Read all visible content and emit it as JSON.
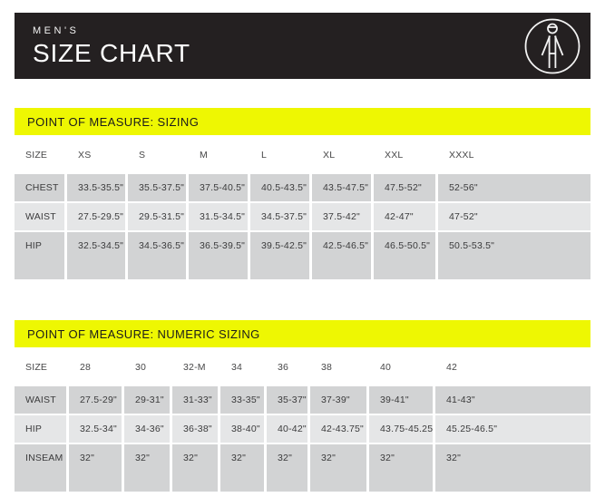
{
  "header": {
    "eyebrow": "MEN'S",
    "title": "SIZE CHART",
    "icon": "person-figure-icon"
  },
  "colors": {
    "band_bg": "#242021",
    "accent_yellow": "#eef702",
    "row_dark": "#d2d3d4",
    "row_light": "#e5e6e7",
    "text": "#3b3b3c"
  },
  "sections": [
    {
      "title": "POINT OF MEASURE: SIZING",
      "columns": [
        "SIZE",
        "XS",
        "S",
        "M",
        "L",
        "XL",
        "XXL",
        "XXXL"
      ],
      "rows": [
        {
          "label": "CHEST",
          "values": [
            "33.5-35.5\"",
            "35.5-37.5\"",
            "37.5-40.5\"",
            "40.5-43.5\"",
            "43.5-47.5\"",
            "47.5-52\"",
            "52-56\""
          ]
        },
        {
          "label": "WAIST",
          "values": [
            "27.5-29.5\"",
            "29.5-31.5\"",
            "31.5-34.5\"",
            "34.5-37.5\"",
            "37.5-42\"",
            "42-47\"",
            "47-52\""
          ]
        },
        {
          "label": "HIP",
          "values": [
            "32.5-34.5\"",
            "34.5-36.5\"",
            "36.5-39.5\"",
            "39.5-42.5\"",
            "42.5-46.5\"",
            "46.5-50.5\"",
            "50.5-53.5\""
          ]
        }
      ]
    },
    {
      "title": "POINT OF MEASURE: NUMERIC SIZING",
      "columns": [
        "SIZE",
        "28",
        "30",
        "32-M",
        "34",
        "36",
        "38",
        "40",
        "42"
      ],
      "rows": [
        {
          "label": "WAIST",
          "values": [
            "27.5-29\"",
            "29-31\"",
            "31-33\"",
            "33-35\"",
            "35-37\"",
            "37-39\"",
            "39-41\"",
            "41-43\""
          ]
        },
        {
          "label": "HIP",
          "values": [
            "32.5-34\"",
            "34-36\"",
            "36-38\"",
            "38-40\"",
            "40-42\"",
            "42-43.75\"",
            "43.75-45.25\"",
            "45.25-46.5\""
          ]
        },
        {
          "label": "INSEAM",
          "values": [
            "32\"",
            "32\"",
            "32\"",
            "32\"",
            "32\"",
            "32\"",
            "32\"",
            "32\""
          ]
        }
      ]
    }
  ]
}
